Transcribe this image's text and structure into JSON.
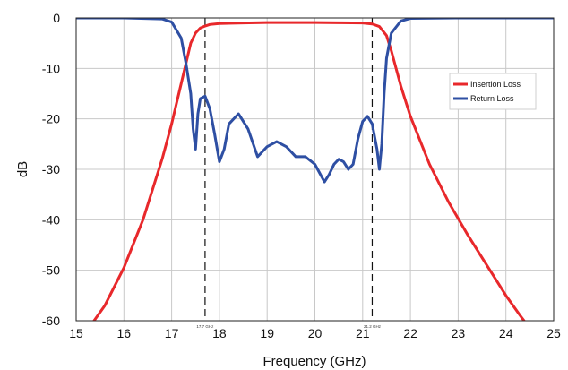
{
  "chart_data": {
    "type": "line",
    "title": "",
    "xlabel": "Frequency (GHz)",
    "ylabel": "dB",
    "xlim": [
      15,
      25
    ],
    "ylim": [
      -60,
      0
    ],
    "xticks": [
      "15",
      "16",
      "17",
      "18",
      "19",
      "20",
      "21",
      "22",
      "23",
      "24",
      "25"
    ],
    "yticks": [
      "0",
      "-10",
      "-20",
      "-30",
      "-40",
      "-50",
      "-60"
    ],
    "grid": true,
    "legend_position": "right",
    "markers": [
      {
        "x": 17.7,
        "label": "17.7 GHz"
      },
      {
        "x": 21.2,
        "label": "21.2 GHz"
      }
    ],
    "series": [
      {
        "name": "Insertion Loss",
        "color": "#e8282b",
        "x": [
          15.3,
          15.6,
          16.0,
          16.4,
          16.8,
          17.0,
          17.2,
          17.4,
          17.5,
          17.6,
          17.7,
          17.8,
          18.0,
          18.5,
          19.0,
          20.0,
          20.5,
          21.0,
          21.2,
          21.35,
          21.5,
          21.6,
          21.7,
          21.8,
          22.0,
          22.4,
          22.8,
          23.2,
          23.6,
          24.0,
          24.3,
          24.5
        ],
        "values": [
          -61,
          -57,
          -49.5,
          -40,
          -28,
          -21,
          -13,
          -5,
          -3,
          -2,
          -1.6,
          -1.3,
          -1.1,
          -1.0,
          -0.9,
          -0.9,
          -0.95,
          -1.0,
          -1.2,
          -1.7,
          -3.5,
          -6.5,
          -10,
          -13.5,
          -19.5,
          -29,
          -36.5,
          -43,
          -49,
          -55,
          -59,
          -61.5
        ]
      },
      {
        "name": "Return Loss",
        "color": "#2e4fa3",
        "x": [
          15.0,
          16.0,
          16.8,
          17.0,
          17.2,
          17.3,
          17.4,
          17.45,
          17.5,
          17.55,
          17.6,
          17.7,
          17.8,
          17.9,
          18.0,
          18.1,
          18.2,
          18.4,
          18.6,
          18.8,
          19.0,
          19.2,
          19.4,
          19.6,
          19.8,
          20.0,
          20.2,
          20.3,
          20.4,
          20.5,
          20.6,
          20.7,
          20.8,
          20.9,
          21.0,
          21.1,
          21.2,
          21.3,
          21.35,
          21.4,
          21.45,
          21.5,
          21.6,
          21.8,
          22.0,
          23.0,
          24.0,
          25.0
        ],
        "values": [
          0,
          0,
          -0.2,
          -0.8,
          -4,
          -9,
          -15,
          -22,
          -26,
          -19,
          -16,
          -15.5,
          -18,
          -23,
          -28.5,
          -26,
          -21,
          -19,
          -22,
          -27.5,
          -25.5,
          -24.5,
          -25.5,
          -27.5,
          -27.5,
          -29,
          -32.5,
          -31,
          -29,
          -28,
          -28.5,
          -30,
          -29,
          -24,
          -20.5,
          -19.5,
          -21,
          -26,
          -30,
          -25,
          -15,
          -8,
          -3,
          -0.6,
          -0.1,
          0,
          0,
          0
        ]
      }
    ]
  }
}
